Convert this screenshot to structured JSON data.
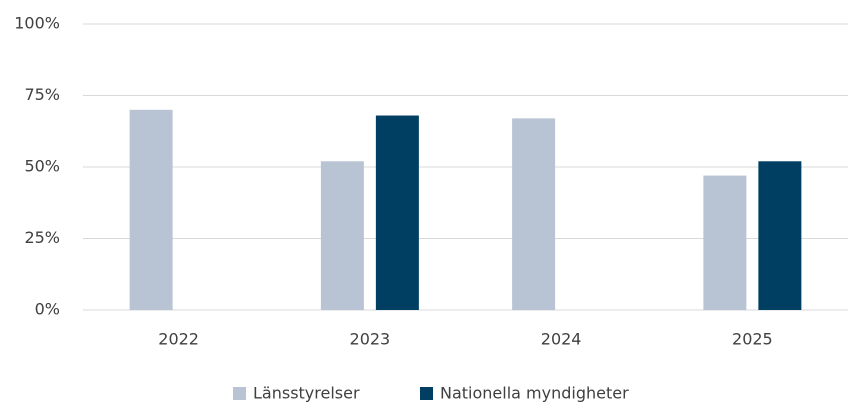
{
  "chart_data": {
    "type": "bar",
    "categories": [
      "2022",
      "2023",
      "2024",
      "2025"
    ],
    "series": [
      {
        "name": "Länsstyrelser",
        "color": "#b8c3d4",
        "values": [
          70,
          52,
          67,
          47
        ]
      },
      {
        "name": "Nationella myndigheter",
        "color": "#003f62",
        "values": [
          null,
          68,
          null,
          52
        ]
      }
    ],
    "ylim": [
      0,
      100
    ],
    "yticks": [
      {
        "value": 0,
        "label": "0%"
      },
      {
        "value": 25,
        "label": "25%"
      },
      {
        "value": 50,
        "label": "50%"
      },
      {
        "value": 75,
        "label": "75%"
      },
      {
        "value": 100,
        "label": "100%"
      }
    ],
    "grid": true,
    "legend": "bottom"
  }
}
